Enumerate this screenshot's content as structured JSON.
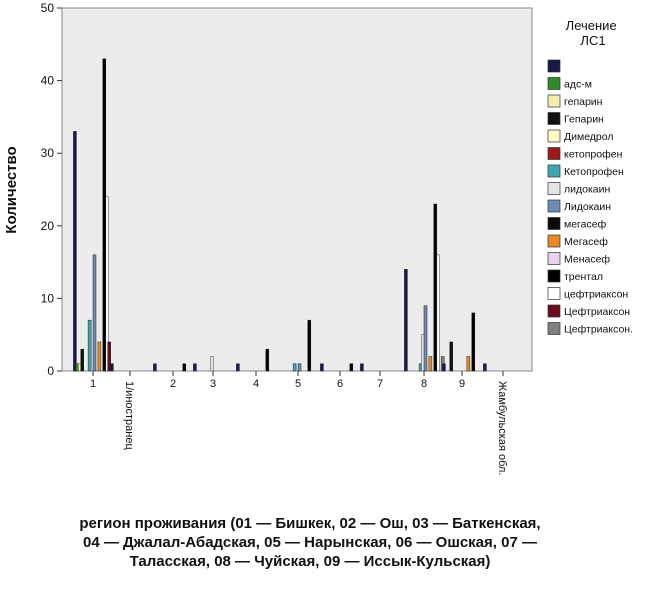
{
  "chart_data": {
    "type": "bar",
    "ylabel": "Количество",
    "xlabel": "регион проживания (01 — Бишкек, 02 — Ош, 03 — Баткенская, 04 — Джалал-Абадская, 05 — Нарынская, 06 — Ошская, 07 — Таласская, 08 — Чуйская, 09 — Иссык-Кульская)",
    "ylim": [
      0,
      50
    ],
    "yticks": [
      0,
      10,
      20,
      30,
      40,
      50
    ],
    "grid": false,
    "legend_position": "right",
    "legend_title": "Лечение ЛС1",
    "categories": [
      "1",
      "1/иностранец",
      "2",
      "3",
      "4",
      "5",
      "6",
      "7",
      "8",
      "9",
      "Жамбульская обл."
    ],
    "series": [
      {
        "name": "",
        "color": "#1a1a4a"
      },
      {
        "name": "адс-м",
        "color": "#2e8b2e"
      },
      {
        "name": "гепарин",
        "color": "#f2eeb0"
      },
      {
        "name": "Гепарин",
        "color": "#111111"
      },
      {
        "name": "Димедрол",
        "color": "#fff8c8"
      },
      {
        "name": "кетопрофен",
        "color": "#9c1a1a"
      },
      {
        "name": "Кетопрофен",
        "color": "#3aa6b0"
      },
      {
        "name": "лидокаин",
        "color": "#e6e6e6"
      },
      {
        "name": "Лидокаин",
        "color": "#6c8cb4"
      },
      {
        "name": "мегасеф",
        "color": "#0a0a0a"
      },
      {
        "name": "Мегасеф",
        "color": "#e88a2a"
      },
      {
        "name": "Менасеф",
        "color": "#e8d4ee"
      },
      {
        "name": "трентал",
        "color": "#000000"
      },
      {
        "name": "цефтриаксон",
        "color": "#ffffff"
      },
      {
        "name": "Цефтриаксон",
        "color": "#6b0a1e"
      },
      {
        "name": "Цефтриаксон.",
        "color": "#808080"
      }
    ],
    "bars": [
      {
        "category": "1",
        "series": "",
        "value": 33
      },
      {
        "category": "1",
        "series": "адс-м",
        "value": 1
      },
      {
        "category": "1",
        "series": "гепарин",
        "value": 1
      },
      {
        "category": "1",
        "series": "Гепарин",
        "value": 3
      },
      {
        "category": "1",
        "series": "Кетопрофен",
        "value": 7
      },
      {
        "category": "1",
        "series": "Лидокаин",
        "value": 16
      },
      {
        "category": "1",
        "series": "Мегасеф",
        "value": 4
      },
      {
        "category": "1",
        "series": "цефтриаксон",
        "value": 24
      },
      {
        "category": "1",
        "series": "Цефтриаксон",
        "value": 4
      },
      {
        "category": "1",
        "series": "трентал",
        "value": 43
      },
      {
        "category": "1/иностранец",
        "series": "",
        "value": 1
      },
      {
        "category": "2",
        "series": "",
        "value": 1
      },
      {
        "category": "2",
        "series": "трентал",
        "value": 1
      },
      {
        "category": "3",
        "series": "лидокаин",
        "value": 2
      },
      {
        "category": "3",
        "series": "",
        "value": 1
      },
      {
        "category": "4",
        "series": "",
        "value": 1
      },
      {
        "category": "4",
        "series": "трентал",
        "value": 3
      },
      {
        "category": "5",
        "series": "Кетопрофен",
        "value": 1
      },
      {
        "category": "5",
        "series": "Лидокаин",
        "value": 1
      },
      {
        "category": "5",
        "series": "трентал",
        "value": 7
      },
      {
        "category": "6",
        "series": "",
        "value": 1
      },
      {
        "category": "6",
        "series": "трентал",
        "value": 1
      },
      {
        "category": "7",
        "series": "",
        "value": 1
      },
      {
        "category": "8",
        "series": "",
        "value": 14
      },
      {
        "category": "8",
        "series": "Кетопрофен",
        "value": 1
      },
      {
        "category": "8",
        "series": "лидокаин",
        "value": 5
      },
      {
        "category": "8",
        "series": "Лидокаин",
        "value": 9
      },
      {
        "category": "8",
        "series": "Мегасеф",
        "value": 2
      },
      {
        "category": "8",
        "series": "Цефтриаксон.",
        "value": 2
      },
      {
        "category": "8",
        "series": "цефтриаксон",
        "value": 16
      },
      {
        "category": "8",
        "series": "трентал",
        "value": 23
      },
      {
        "category": "9",
        "series": "",
        "value": 1
      },
      {
        "category": "9",
        "series": "Гепарин",
        "value": 4
      },
      {
        "category": "9",
        "series": "Мегасеф",
        "value": 2
      },
      {
        "category": "9",
        "series": "трентал",
        "value": 8
      },
      {
        "category": "Жамбульская обл.",
        "series": "",
        "value": 1
      }
    ]
  }
}
